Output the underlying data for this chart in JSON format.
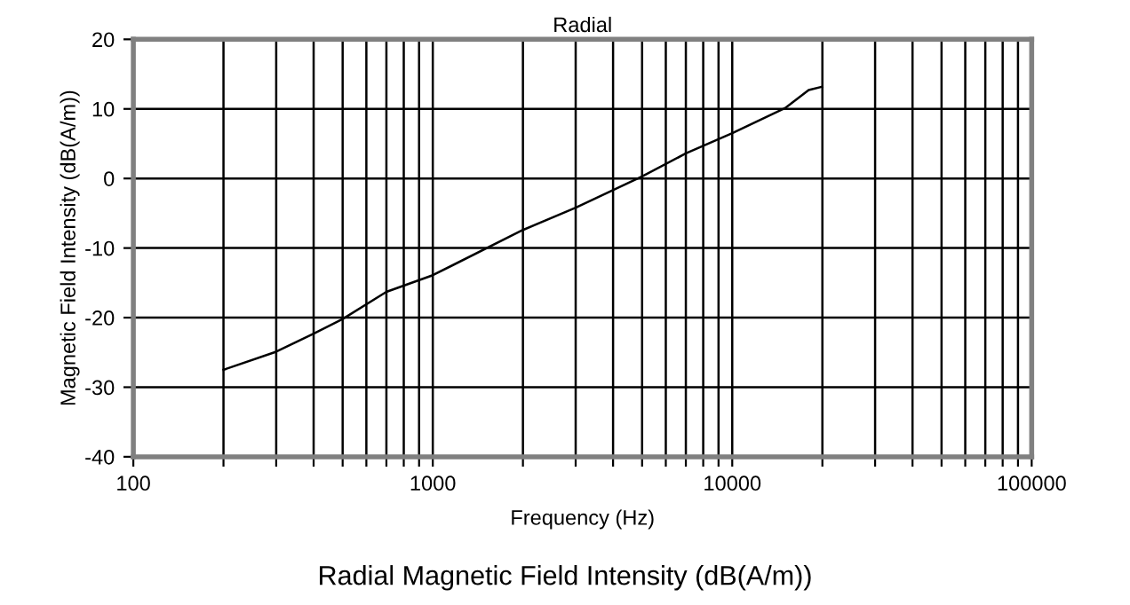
{
  "chart_data": {
    "type": "line",
    "title": "Radial",
    "xlabel": "Frequency (Hz)",
    "ylabel": "Magnetic Field Intensity (dB(A/m))",
    "annotations": [
      "Radial Magnetic Field Intensity (dB(A/m))"
    ],
    "series": [
      {
        "color": "#000000",
        "x": [
          200,
          300,
          400,
          500,
          700,
          1000,
          2000,
          3000,
          5000,
          7000,
          10000,
          15000,
          18000,
          20000
        ],
        "values": [
          -27.5,
          -24.9,
          -22.3,
          -20.2,
          -16.3,
          -13.9,
          -7.4,
          -4.2,
          0.3,
          3.6,
          6.5,
          10.1,
          12.7,
          13.2
        ]
      }
    ],
    "log": "x",
    "xlim": [
      100,
      100000
    ],
    "ylim": [
      -40,
      20
    ],
    "xticks": [
      100,
      {
        "value": 200,
        "label": null
      },
      {
        "value": 300,
        "label": null
      },
      {
        "value": 400,
        "label": null
      },
      {
        "value": 500,
        "label": null
      },
      {
        "value": 600,
        "label": null
      },
      {
        "value": 700,
        "label": null
      },
      {
        "value": 800,
        "label": null
      },
      {
        "value": 900,
        "label": null
      },
      1000,
      {
        "value": 2000,
        "label": null
      },
      {
        "value": 3000,
        "label": null
      },
      {
        "value": 4000,
        "label": null
      },
      {
        "value": 5000,
        "label": null
      },
      {
        "value": 6000,
        "label": null
      },
      {
        "value": 7000,
        "label": null
      },
      {
        "value": 8000,
        "label": null
      },
      {
        "value": 9000,
        "label": null
      },
      10000,
      {
        "value": 20000,
        "label": null
      },
      {
        "value": 30000,
        "label": null
      },
      {
        "value": 40000,
        "label": null
      },
      {
        "value": 50000,
        "label": null
      },
      {
        "value": 60000,
        "label": null
      },
      {
        "value": 70000,
        "label": null
      },
      {
        "value": 80000,
        "label": null
      },
      {
        "value": 90000,
        "label": null
      },
      100000
    ],
    "yticks": [
      -40,
      -30,
      -20,
      -10,
      0,
      10,
      20
    ],
    "grid": true,
    "marker": "none",
    "line_style": "solid"
  }
}
